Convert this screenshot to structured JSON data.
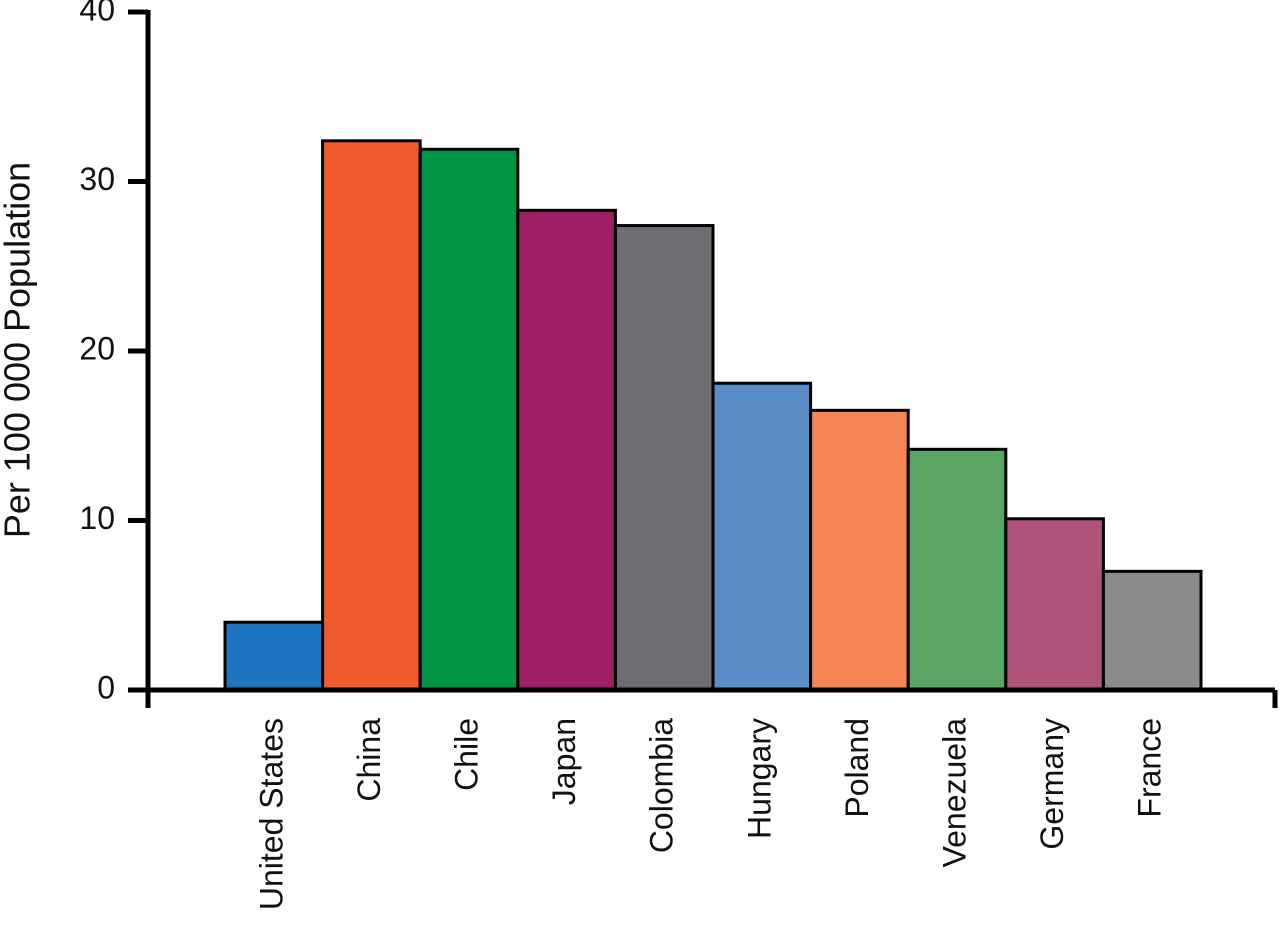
{
  "chart_data": {
    "type": "bar",
    "y_label": "Per 100 000 Population",
    "categories": [
      "United States",
      "China",
      "Chile",
      "Japan",
      "Colombia",
      "Hungary",
      "Poland",
      "Venezuela",
      "Germany",
      "France"
    ],
    "values": [
      4.0,
      32.4,
      31.9,
      28.3,
      27.4,
      18.1,
      16.5,
      14.2,
      10.1,
      7.0
    ],
    "colors": [
      "#1f74c0",
      "#f05a2c",
      "#009444",
      "#9e1f63",
      "#6d6e71",
      "#5b8ec9",
      "#f48454",
      "#5aa564",
      "#ae5379",
      "#8a8b8c"
    ],
    "ylim": [
      0,
      40
    ],
    "yticks": [
      0,
      10,
      20,
      30,
      40
    ],
    "grid": false
  }
}
